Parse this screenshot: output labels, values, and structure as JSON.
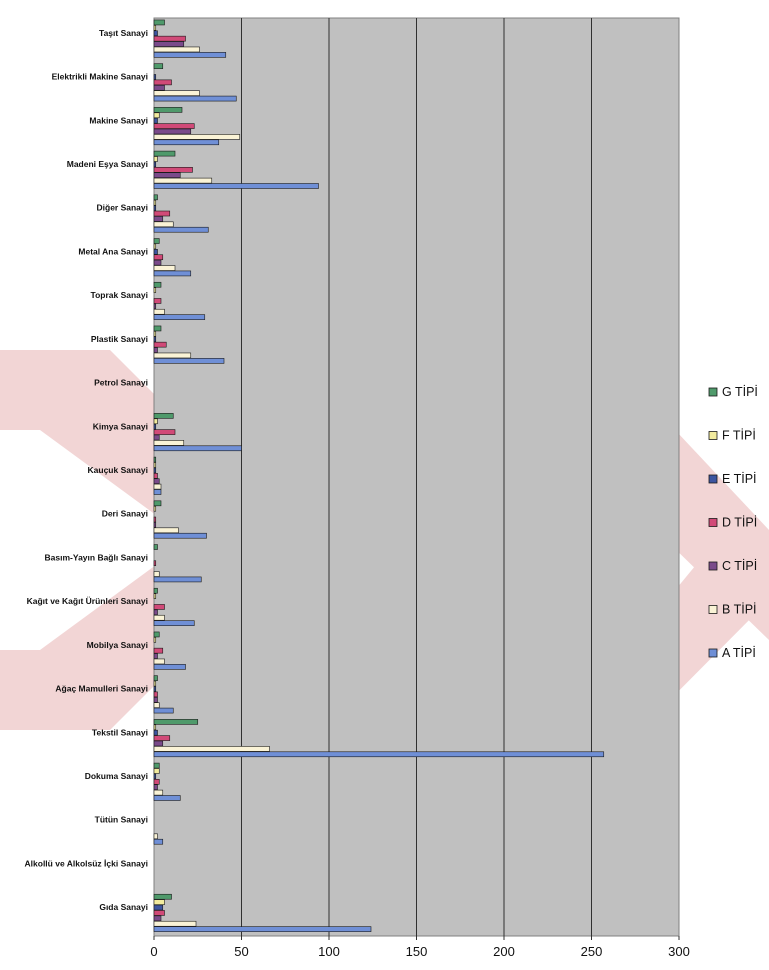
{
  "chart_data": {
    "type": "bar",
    "orientation": "horizontal",
    "grid": true,
    "legend_position": "right",
    "xlim": [
      0,
      300
    ],
    "xticks": [
      "0",
      "50",
      "100",
      "150",
      "200",
      "250",
      "300"
    ],
    "categories": [
      "Taşıt Sanayi",
      "Elektrikli Makine Sanayi",
      "Makine Sanayi",
      "Madeni Eşya Sanayi",
      "Diğer Sanayi",
      "Metal Ana Sanayi",
      "Toprak Sanayi",
      "Plastik Sanayi",
      "Petrol Sanayi",
      "Kimya Sanayi",
      "Kauçuk Sanayi",
      "Deri Sanayi",
      "Basım-Yayın Bağlı Sanayi",
      "Kağıt ve Kağıt Ürünleri Sanayi",
      "Mobilya Sanayi",
      "Ağaç Mamulleri Sanayi",
      "Tekstil Sanayi",
      "Dokuma Sanayi",
      "Tütün Sanayi",
      "Alkollü ve Alkolsüz İçki Sanayi",
      "Gıda Sanayi"
    ],
    "series": [
      {
        "name": "G TİPİ",
        "color": "#4f9a6b",
        "values": [
          6,
          5,
          16,
          12,
          2,
          3,
          4,
          4,
          0,
          11,
          1,
          4,
          2,
          2,
          3,
          2,
          25,
          3,
          0,
          0,
          10
        ]
      },
      {
        "name": "F TİPİ",
        "color": "#f2eb9e",
        "values": [
          1,
          0,
          3,
          2,
          1,
          1,
          1,
          1,
          0,
          2,
          1,
          1,
          0,
          1,
          1,
          1,
          1,
          3,
          0,
          0,
          6
        ]
      },
      {
        "name": "E TİPİ",
        "color": "#3d55a0",
        "values": [
          2,
          1,
          2,
          1,
          1,
          2,
          0,
          1,
          0,
          1,
          1,
          0,
          0,
          0,
          0,
          1,
          2,
          1,
          0,
          0,
          5
        ]
      },
      {
        "name": "D TİPİ",
        "color": "#d14a78",
        "values": [
          18,
          10,
          23,
          22,
          9,
          5,
          4,
          7,
          0,
          12,
          2,
          1,
          1,
          6,
          5,
          2,
          9,
          3,
          0,
          0,
          6
        ]
      },
      {
        "name": "C TİPİ",
        "color": "#7a4a8a",
        "values": [
          17,
          6,
          21,
          15,
          5,
          4,
          1,
          2,
          0,
          3,
          3,
          1,
          0,
          2,
          2,
          2,
          5,
          2,
          0,
          0,
          4
        ]
      },
      {
        "name": "B TİPİ",
        "color": "#faf3d6",
        "values": [
          26,
          26,
          49,
          33,
          11,
          12,
          6,
          21,
          0,
          17,
          4,
          14,
          3,
          6,
          6,
          3,
          66,
          5,
          2,
          0,
          24
        ]
      },
      {
        "name": "A TİPİ",
        "color": "#6f8fd6",
        "values": [
          41,
          47,
          37,
          94,
          31,
          21,
          29,
          40,
          0,
          50,
          4,
          30,
          27,
          23,
          18,
          11,
          257,
          15,
          5,
          0,
          124
        ]
      }
    ],
    "legend_order": [
      "G TİPİ",
      "F TİPİ",
      "E TİPİ",
      "D TİPİ",
      "C TİPİ",
      "B TİPİ",
      "A TİPİ"
    ]
  }
}
